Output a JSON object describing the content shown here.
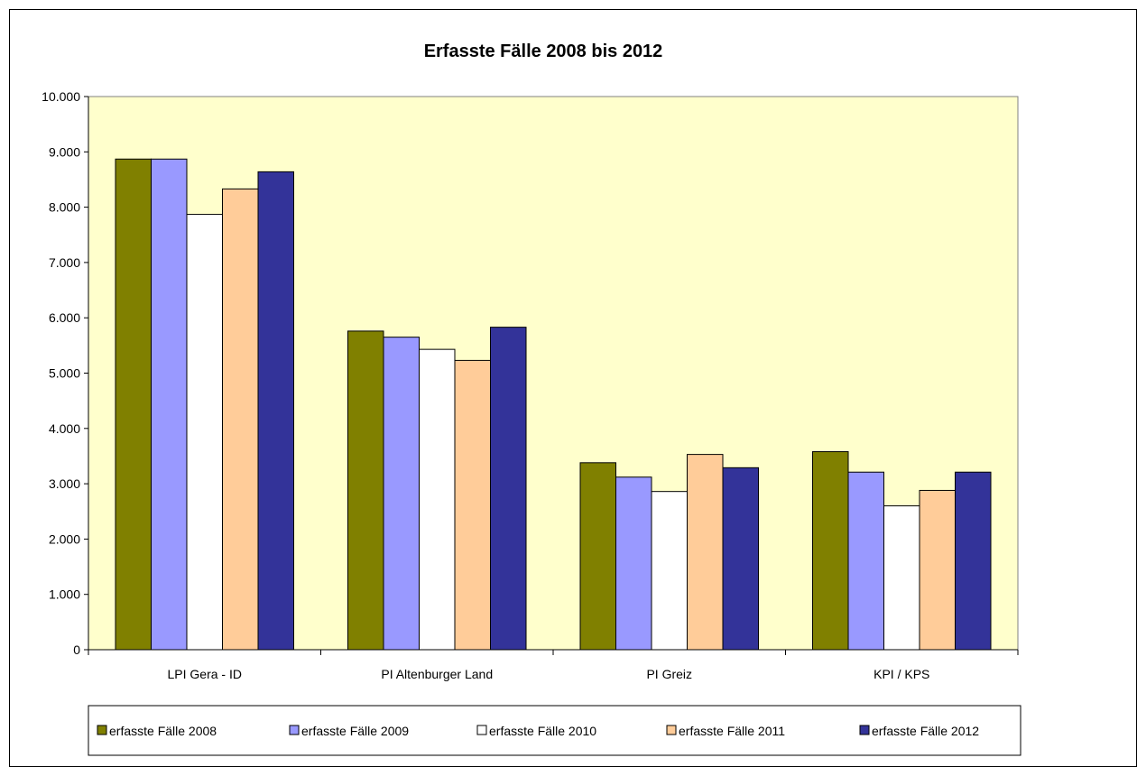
{
  "chart_data": {
    "type": "bar",
    "title": "Erfasste Fälle 2008 bis 2012",
    "xlabel": "",
    "ylabel": "",
    "ylim": [
      0,
      10000
    ],
    "yticks": [
      "0",
      "1.000",
      "2.000",
      "3.000",
      "4.000",
      "5.000",
      "6.000",
      "7.000",
      "8.000",
      "9.000",
      "10.000"
    ],
    "ytick_values": [
      0,
      1000,
      2000,
      3000,
      4000,
      5000,
      6000,
      7000,
      8000,
      9000,
      10000
    ],
    "grid": false,
    "legend_position": "bottom",
    "plot_background": "#FFFFCC",
    "categories": [
      "LPI Gera - ID",
      "PI Altenburger Land",
      "PI Greiz",
      "KPI / KPS"
    ],
    "series": [
      {
        "name": "erfasste Fälle 2008",
        "color": "#808000",
        "values": [
          8870,
          5760,
          3380,
          3580
        ]
      },
      {
        "name": "erfasste Fälle 2009",
        "color": "#9999FF",
        "values": [
          8870,
          5650,
          3120,
          3210
        ]
      },
      {
        "name": "erfasste Fälle 2010",
        "color": "#FFFFFF",
        "values": [
          7870,
          5430,
          2860,
          2600
        ]
      },
      {
        "name": "erfasste Fälle 2011",
        "color": "#FFCC99",
        "values": [
          8330,
          5230,
          3530,
          2880
        ]
      },
      {
        "name": "erfasste Fälle 2012",
        "color": "#333399",
        "values": [
          8640,
          5830,
          3290,
          3210
        ]
      }
    ]
  }
}
